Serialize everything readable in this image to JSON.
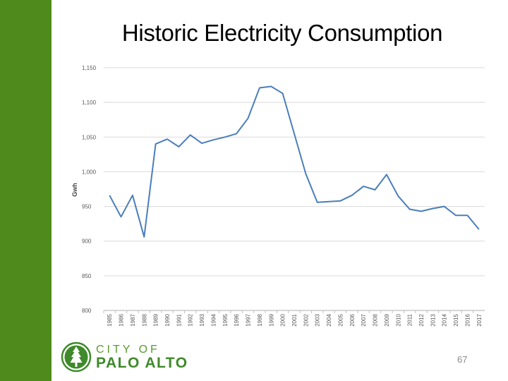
{
  "slide": {
    "title": "Historic Electricity Consumption",
    "page_number": "67"
  },
  "logo": {
    "line1": "CITY OF",
    "line2": "PALO ALTO"
  },
  "colors": {
    "sidebar": "#4f8a1c",
    "line": "#4a7ebb",
    "grid": "#d9d9d9",
    "logo_green": "#3f8a2a"
  },
  "chart_data": {
    "type": "line",
    "title": "Historic Electricity Consumption",
    "xlabel": "",
    "ylabel": "Gwh",
    "ylim": [
      800,
      1150
    ],
    "yticks": [
      800,
      850,
      900,
      950,
      1000,
      1050,
      1100,
      1150
    ],
    "ytick_labels": [
      "800",
      "850",
      "900",
      "950",
      "1,000",
      "1,050",
      "1,100",
      "1,150"
    ],
    "grid": true,
    "categories": [
      "1985",
      "1986",
      "1987",
      "1988",
      "1989",
      "1990",
      "1991",
      "1992",
      "1993",
      "1994",
      "1995",
      "1996",
      "1997",
      "1998",
      "1999",
      "2000",
      "2001",
      "2002",
      "2003",
      "2004",
      "2005",
      "2006",
      "2007",
      "2008",
      "2009",
      "2010",
      "2011",
      "2012",
      "2013",
      "2014",
      "2015",
      "2016",
      "2017"
    ],
    "series": [
      {
        "name": "Gwh",
        "values": [
          966,
          935,
          966,
          906,
          1040,
          1047,
          1036,
          1053,
          1041,
          1046,
          1050,
          1055,
          1077,
          1121,
          1123,
          1113,
          1055,
          997,
          956,
          957,
          958,
          966,
          979,
          974,
          996,
          965,
          946,
          943,
          947,
          950,
          937,
          937,
          917
        ]
      }
    ]
  }
}
